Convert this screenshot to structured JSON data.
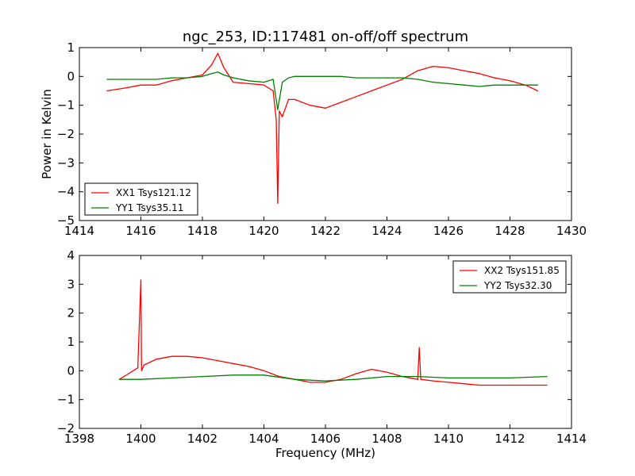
{
  "chart_data": [
    {
      "type": "line",
      "title": "ngc_253, ID:117481 on-off/off spectrum",
      "xlabel": "",
      "ylabel": "Power in Kelvin",
      "xlim": [
        1414,
        1430
      ],
      "ylim": [
        -5,
        1
      ],
      "xticks": [
        1414,
        1416,
        1418,
        1420,
        1422,
        1424,
        1426,
        1428,
        1430
      ],
      "yticks": [
        1,
        0,
        -1,
        -2,
        -3,
        -4,
        -5
      ],
      "xtick_labels": [
        "1414",
        "1416",
        "1418",
        "1420",
        "1422",
        "1424",
        "1426",
        "1428",
        "1430"
      ],
      "ytick_labels": [
        "1",
        "0",
        "−1",
        "−2",
        "−3",
        "−4",
        "−5"
      ],
      "grid": false,
      "legend_position": "lower-left",
      "series": [
        {
          "name": "XX1 Tsys121.12",
          "color": "#ff0000",
          "x": [
            1414.9,
            1415.5,
            1416.0,
            1416.5,
            1417.0,
            1417.5,
            1418.0,
            1418.3,
            1418.5,
            1418.7,
            1419.0,
            1419.5,
            1420.0,
            1420.3,
            1420.4,
            1420.45,
            1420.5,
            1420.6,
            1420.8,
            1421.0,
            1421.5,
            1422.0,
            1422.5,
            1423.0,
            1423.5,
            1424.0,
            1424.5,
            1425.0,
            1425.5,
            1426.0,
            1426.5,
            1427.0,
            1427.5,
            1428.0,
            1428.5,
            1428.9
          ],
          "y": [
            -0.5,
            -0.4,
            -0.3,
            -0.3,
            -0.15,
            -0.05,
            0.05,
            0.4,
            0.8,
            0.3,
            -0.2,
            -0.25,
            -0.3,
            -0.5,
            -1.5,
            -4.4,
            -1.2,
            -1.4,
            -0.8,
            -0.8,
            -1.0,
            -1.1,
            -0.9,
            -0.7,
            -0.5,
            -0.3,
            -0.1,
            0.2,
            0.35,
            0.3,
            0.2,
            0.1,
            -0.05,
            -0.15,
            -0.3,
            -0.5
          ]
        },
        {
          "name": "YY1 Tsys35.11",
          "color": "#008000",
          "x": [
            1414.9,
            1415.5,
            1416.0,
            1416.5,
            1417.0,
            1417.5,
            1418.0,
            1418.3,
            1418.5,
            1418.7,
            1419.0,
            1419.5,
            1420.0,
            1420.3,
            1420.45,
            1420.6,
            1420.8,
            1421.0,
            1421.5,
            1422.0,
            1422.5,
            1423.0,
            1423.5,
            1424.0,
            1424.5,
            1425.0,
            1425.5,
            1426.0,
            1426.5,
            1427.0,
            1427.5,
            1428.0,
            1428.5,
            1428.9
          ],
          "y": [
            -0.1,
            -0.1,
            -0.1,
            -0.1,
            -0.05,
            -0.05,
            0.0,
            0.1,
            0.15,
            0.05,
            -0.05,
            -0.15,
            -0.2,
            -0.1,
            -1.15,
            -0.2,
            -0.05,
            0.0,
            0.0,
            0.0,
            0.0,
            -0.05,
            -0.05,
            -0.05,
            -0.05,
            -0.1,
            -0.2,
            -0.25,
            -0.3,
            -0.35,
            -0.3,
            -0.3,
            -0.3,
            -0.3
          ]
        }
      ]
    },
    {
      "type": "line",
      "title": "",
      "xlabel": "Frequency (MHz)",
      "ylabel": "",
      "xlim": [
        1398,
        1414
      ],
      "ylim": [
        -2,
        4
      ],
      "xticks": [
        1398,
        1400,
        1402,
        1404,
        1406,
        1408,
        1410,
        1412,
        1414
      ],
      "yticks": [
        4,
        3,
        2,
        1,
        0,
        -1,
        -2
      ],
      "xtick_labels": [
        "1398",
        "1400",
        "1402",
        "1404",
        "1406",
        "1408",
        "1410",
        "1412",
        "1414"
      ],
      "ytick_labels": [
        "4",
        "3",
        "2",
        "1",
        "0",
        "−1",
        "−2"
      ],
      "grid": false,
      "legend_position": "upper-right",
      "series": [
        {
          "name": "XX2 Tsys151.85",
          "color": "#ff0000",
          "x": [
            1399.3,
            1399.6,
            1399.9,
            1400.0,
            1400.02,
            1400.1,
            1400.5,
            1401.0,
            1401.5,
            1402.0,
            1402.5,
            1403.0,
            1403.5,
            1404.0,
            1404.5,
            1405.0,
            1405.5,
            1406.0,
            1406.5,
            1407.0,
            1407.5,
            1408.0,
            1408.5,
            1409.0,
            1409.05,
            1409.1,
            1409.5,
            1410.0,
            1410.5,
            1411.0,
            1411.5,
            1412.0,
            1412.5,
            1413.0,
            1413.2
          ],
          "y": [
            -0.3,
            -0.1,
            0.1,
            3.15,
            0.0,
            0.2,
            0.4,
            0.5,
            0.5,
            0.45,
            0.35,
            0.25,
            0.15,
            0.0,
            -0.2,
            -0.3,
            -0.4,
            -0.4,
            -0.3,
            -0.1,
            0.05,
            -0.05,
            -0.2,
            -0.3,
            0.8,
            -0.3,
            -0.35,
            -0.4,
            -0.45,
            -0.5,
            -0.5,
            -0.5,
            -0.5,
            -0.5,
            -0.5
          ]
        },
        {
          "name": "YY2 Tsys32.30",
          "color": "#008000",
          "x": [
            1399.3,
            1400.0,
            1401.0,
            1402.0,
            1403.0,
            1404.0,
            1405.0,
            1406.0,
            1407.0,
            1408.0,
            1409.0,
            1410.0,
            1411.0,
            1412.0,
            1413.2
          ],
          "y": [
            -0.3,
            -0.3,
            -0.25,
            -0.2,
            -0.15,
            -0.15,
            -0.3,
            -0.35,
            -0.3,
            -0.2,
            -0.2,
            -0.25,
            -0.25,
            -0.25,
            -0.2
          ]
        }
      ]
    }
  ]
}
